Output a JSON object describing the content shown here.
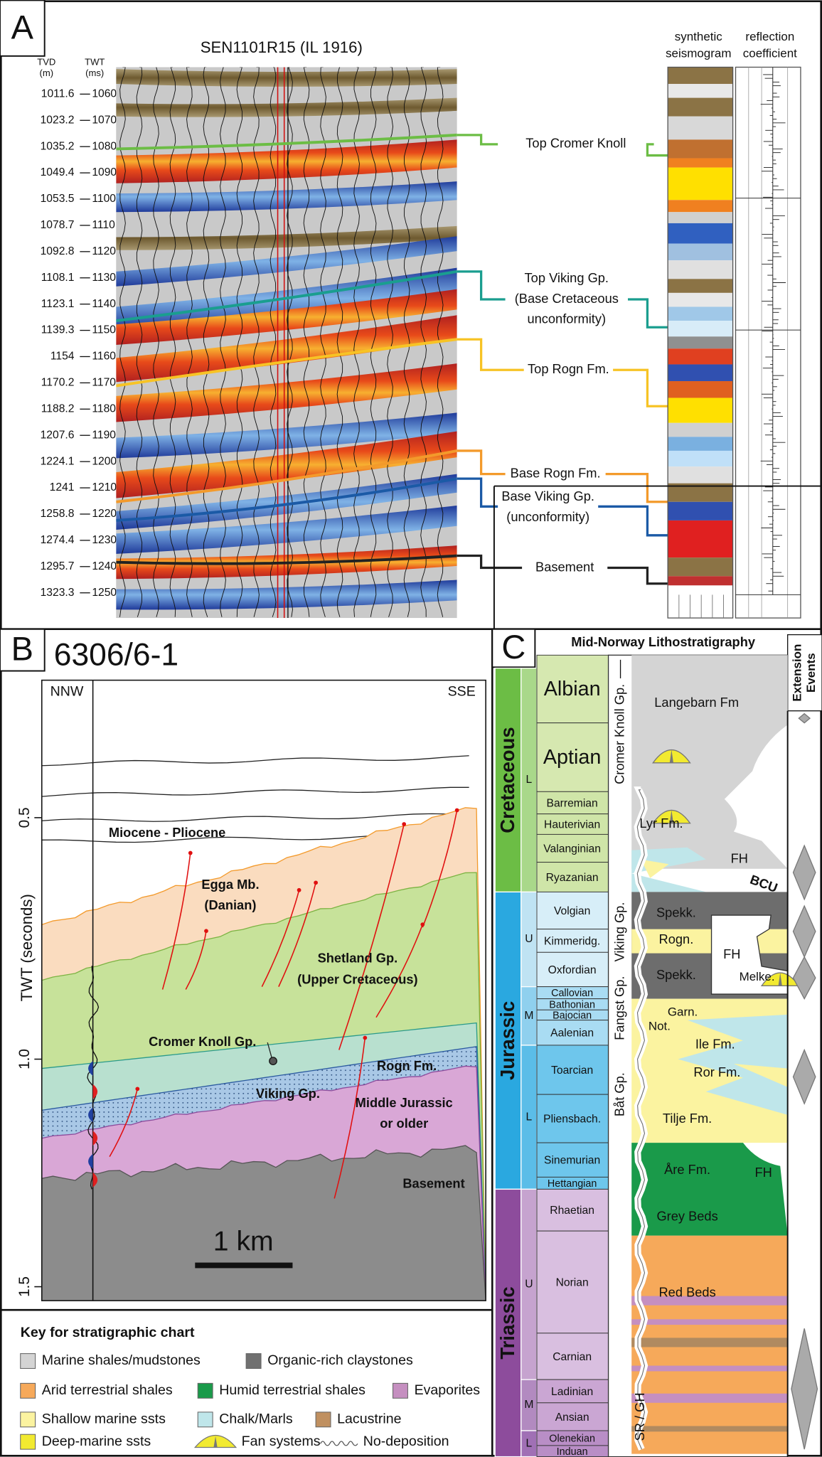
{
  "panel_a": {
    "label": "A",
    "title": "SEN1101R15 (IL 1916)",
    "tvd_header": [
      "TVD",
      "(m)"
    ],
    "twt_header": [
      "TWT",
      "(ms)"
    ],
    "depth_rows": [
      {
        "tvd": 1011.6,
        "twt": 1060
      },
      {
        "tvd": 1023.2,
        "twt": 1070
      },
      {
        "tvd": 1035.2,
        "twt": 1080
      },
      {
        "tvd": 1049.4,
        "twt": 1090
      },
      {
        "tvd": 1053.5,
        "twt": 1100
      },
      {
        "tvd": 1078.7,
        "twt": 1110
      },
      {
        "tvd": 1092.8,
        "twt": 1120
      },
      {
        "tvd": 1108.1,
        "twt": 1130
      },
      {
        "tvd": 1123.1,
        "twt": 1140
      },
      {
        "tvd": 1139.3,
        "twt": 1150
      },
      {
        "tvd": 1154,
        "twt": 1160
      },
      {
        "tvd": 1170.2,
        "twt": 1170
      },
      {
        "tvd": 1188.2,
        "twt": 1180
      },
      {
        "tvd": 1207.6,
        "twt": 1190
      },
      {
        "tvd": 1224.1,
        "twt": 1200
      },
      {
        "tvd": 1241,
        "twt": 1210
      },
      {
        "tvd": 1258.8,
        "twt": 1220
      },
      {
        "tvd": 1274.4,
        "twt": 1230
      },
      {
        "tvd": 1295.7,
        "twt": 1240
      },
      {
        "tvd": 1323.3,
        "twt": 1250
      }
    ],
    "synthetic_header": [
      "synthetic",
      "seismogram"
    ],
    "reflection_header": [
      "reflection",
      "coefficient"
    ],
    "horizons": [
      {
        "lines": [
          "Top Cromer Knoll"
        ]
      },
      {
        "lines": [
          "Top Viking Gp.",
          "(Base Cretaceous",
          "unconformity)"
        ]
      },
      {
        "lines": [
          "Top Rogn Fm."
        ]
      },
      {
        "lines": [
          "Base Rogn Fm."
        ]
      },
      {
        "lines": [
          "Base Viking Gp.",
          "(unconformity)"
        ]
      },
      {
        "lines": [
          "Basement"
        ]
      }
    ]
  },
  "panel_b": {
    "label": "B",
    "well": "6306/6-1",
    "left_direction": "NNW",
    "right_direction": "SSE",
    "y_label": "TWT (seconds)",
    "y_ticks": [
      "0.5",
      "1.0",
      "1.5"
    ],
    "units": [
      {
        "lines": [
          "Miocene - Pliocene"
        ]
      },
      {
        "lines": [
          "Egga Mb.",
          "(Danian)"
        ]
      },
      {
        "lines": [
          "Shetland Gp.",
          "(Upper Cretaceous)"
        ]
      },
      {
        "lines": [
          "Cromer Knoll Gp."
        ]
      },
      {
        "lines": [
          "Rogn Fm."
        ]
      },
      {
        "lines": [
          "Viking Gp."
        ]
      },
      {
        "lines": [
          "Middle Jurassic",
          "or older"
        ]
      },
      {
        "lines": [
          "Basement"
        ]
      }
    ],
    "scale_bar": "1 km"
  },
  "key": {
    "title": "Key for stratigraphic chart",
    "items": [
      "Marine shales/mudstones",
      "Organic-rich claystones",
      "Arid terrestrial shales",
      "Humid terrestrial shales",
      "Evaporites",
      "Shallow marine ssts",
      "Chalk/Marls",
      "Lacustrine",
      "Deep-marine ssts",
      "Fan systems",
      "No-deposition"
    ]
  },
  "panel_c": {
    "label": "C",
    "title": "Mid-Norway Lithostratigraphy",
    "extension_header": [
      "Extension",
      "Events"
    ],
    "periods": [
      "Cretaceous",
      "Jurassic",
      "Triassic"
    ],
    "epochs": [
      "L",
      "U",
      "M",
      "L",
      "U",
      "M",
      "L"
    ],
    "stages": [
      "Albian",
      "Aptian",
      "Barremian",
      "Hauterivian",
      "Valanginian",
      "Ryazanian",
      "Volgian",
      "Kimmeridg.",
      "Oxfordian",
      "Callovian",
      "Bathonian",
      "Bajocian",
      "Aalenian",
      "Toarcian",
      "Pliensbach.",
      "Sinemurian",
      "Hettangian",
      "Rhaetian",
      "Norian",
      "Carnian",
      "Ladinian",
      "Ansian",
      "Olenekian",
      "Induan"
    ],
    "groups": [
      "Cromer Knoll Gp.",
      "Viking Gp.",
      "Fangst Gp.",
      "Båt Gp.",
      "SR / GH"
    ],
    "formations": [
      "Langebarn Fm",
      "Lyr Fm.",
      "FH",
      "BCU",
      "Spekk.",
      "Rogn.",
      "FH",
      "Spekk.",
      "Melke.",
      "Garn.",
      "Not.",
      "Ile Fm.",
      "Ror Fm.",
      "Tilje Fm.",
      "Åre Fm.",
      "FH",
      "Grey Beds",
      "Red Beds"
    ]
  }
}
